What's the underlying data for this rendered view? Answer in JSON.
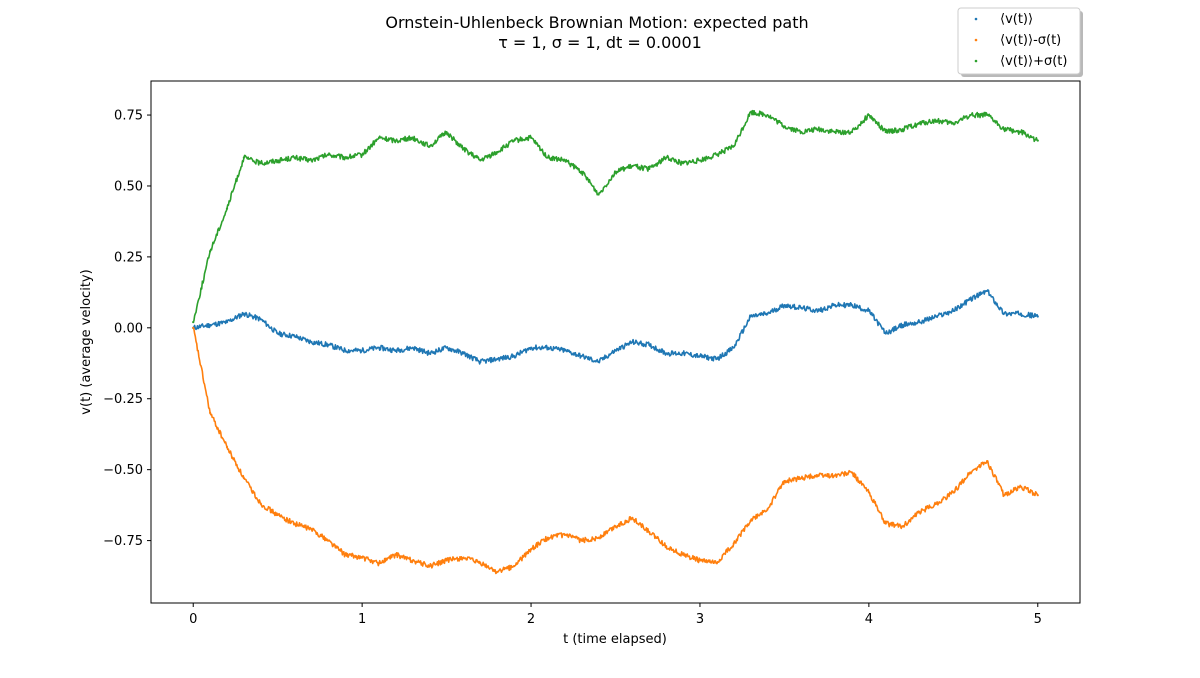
{
  "chart_data": {
    "type": "scatter",
    "title": "Ornstein-Uhlenbeck Brownian Motion: expected path",
    "subtitle": "τ = 1, σ = 1, dt = 0.0001",
    "xlabel": "t (time elapsed)",
    "ylabel": "v(t) (average velocity)",
    "xlim": [
      -0.25,
      5.25
    ],
    "ylim": [
      -0.97,
      0.87
    ],
    "xticks": [
      0,
      1,
      2,
      3,
      4,
      5
    ],
    "xtick_labels": [
      "0",
      "1",
      "2",
      "3",
      "4",
      "5"
    ],
    "yticks": [
      -0.75,
      -0.5,
      -0.25,
      0.0,
      0.25,
      0.5,
      0.75
    ],
    "ytick_labels": [
      "−0.75",
      "−0.50",
      "−0.25",
      "0.00",
      "0.25",
      "0.50",
      "0.75"
    ],
    "grid": false,
    "legend_position": "top-right",
    "x": [
      0,
      0.1,
      0.2,
      0.3,
      0.4,
      0.5,
      0.6,
      0.7,
      0.8,
      0.9,
      1.0,
      1.1,
      1.2,
      1.3,
      1.4,
      1.5,
      1.6,
      1.7,
      1.8,
      1.9,
      2.0,
      2.1,
      2.2,
      2.3,
      2.4,
      2.5,
      2.6,
      2.7,
      2.8,
      2.9,
      3.0,
      3.1,
      3.2,
      3.3,
      3.4,
      3.5,
      3.6,
      3.7,
      3.8,
      3.9,
      4.0,
      4.1,
      4.2,
      4.3,
      4.4,
      4.5,
      4.6,
      4.7,
      4.8,
      4.9,
      5.0
    ],
    "series": [
      {
        "name": "⟨v(t)⟩",
        "color": "#1f77b4",
        "values": [
          0.0,
          0.01,
          0.02,
          0.05,
          0.03,
          -0.02,
          -0.03,
          -0.05,
          -0.06,
          -0.08,
          -0.08,
          -0.07,
          -0.08,
          -0.07,
          -0.09,
          -0.07,
          -0.09,
          -0.12,
          -0.11,
          -0.1,
          -0.07,
          -0.07,
          -0.08,
          -0.1,
          -0.12,
          -0.08,
          -0.05,
          -0.06,
          -0.09,
          -0.09,
          -0.1,
          -0.11,
          -0.07,
          0.04,
          0.05,
          0.08,
          0.07,
          0.06,
          0.08,
          0.08,
          0.06,
          -0.02,
          0.01,
          0.02,
          0.04,
          0.06,
          0.1,
          0.13,
          0.05,
          0.05,
          0.04
        ]
      },
      {
        "name": "⟨v(t)⟩-σ(t)",
        "color": "#ff7f0e",
        "values": [
          0.0,
          -0.3,
          -0.42,
          -0.53,
          -0.62,
          -0.66,
          -0.69,
          -0.71,
          -0.75,
          -0.8,
          -0.81,
          -0.83,
          -0.8,
          -0.82,
          -0.84,
          -0.82,
          -0.81,
          -0.83,
          -0.86,
          -0.84,
          -0.78,
          -0.74,
          -0.73,
          -0.75,
          -0.74,
          -0.7,
          -0.67,
          -0.72,
          -0.77,
          -0.8,
          -0.82,
          -0.83,
          -0.76,
          -0.68,
          -0.64,
          -0.54,
          -0.53,
          -0.52,
          -0.52,
          -0.51,
          -0.58,
          -0.69,
          -0.7,
          -0.65,
          -0.62,
          -0.58,
          -0.51,
          -0.47,
          -0.59,
          -0.56,
          -0.59
        ]
      },
      {
        "name": "⟨v(t)⟩+σ(t)",
        "color": "#2ca02c",
        "values": [
          0.02,
          0.27,
          0.42,
          0.6,
          0.58,
          0.59,
          0.6,
          0.59,
          0.61,
          0.6,
          0.61,
          0.67,
          0.66,
          0.67,
          0.64,
          0.69,
          0.63,
          0.59,
          0.62,
          0.66,
          0.67,
          0.6,
          0.59,
          0.55,
          0.47,
          0.55,
          0.57,
          0.56,
          0.6,
          0.58,
          0.59,
          0.61,
          0.64,
          0.76,
          0.75,
          0.71,
          0.69,
          0.7,
          0.69,
          0.69,
          0.75,
          0.69,
          0.7,
          0.72,
          0.73,
          0.72,
          0.75,
          0.75,
          0.7,
          0.69,
          0.66
        ]
      }
    ]
  }
}
